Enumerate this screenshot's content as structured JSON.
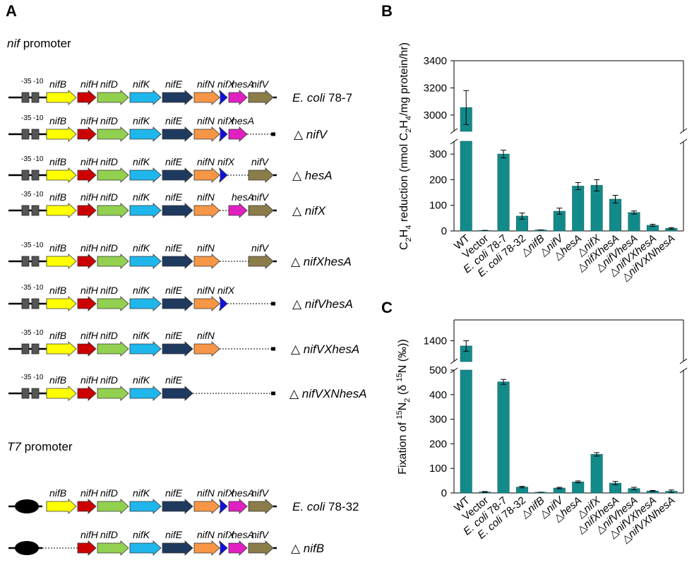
{
  "panel_a": {
    "letter": "A",
    "nif_promoter_label": {
      "italic": "nif",
      "rest": " promoter"
    },
    "t7_promoter_label": {
      "italic": "T7",
      "rest": " promoter"
    },
    "promoter_boxes": [
      "-35",
      "-10"
    ],
    "colors": {
      "nifB": "#ffff00",
      "nifH": "#cc0000",
      "nifD": "#92d050",
      "nifK": "#1fb6ec",
      "nifE": "#1f3a5f",
      "nifN": "#f79646",
      "nifX": "#1010e0",
      "hesA": "#e020c0",
      "nifV": "#8b7d4a",
      "box": "#555555",
      "t7": "#000000"
    },
    "constructs": [
      {
        "label_parts": [
          {
            "t": "E. coli",
            "i": true
          },
          {
            "t": " 78-7",
            "i": false
          }
        ],
        "promoter": "nif",
        "genes": [
          "nifB",
          "nifH",
          "nifD",
          "nifK",
          "nifE",
          "nifN",
          "nifX",
          "hesA",
          "nifV"
        ],
        "deleted": []
      },
      {
        "label_parts": [
          {
            "t": "△ ",
            "i": false
          },
          {
            "t": "nifV",
            "i": true
          }
        ],
        "promoter": "nif",
        "genes": [
          "nifB",
          "nifH",
          "nifD",
          "nifK",
          "nifE",
          "nifN",
          "nifX",
          "hesA"
        ],
        "deleted": [
          "nifV"
        ]
      },
      {
        "label_parts": [
          {
            "t": "△ ",
            "i": false
          },
          {
            "t": "hesA",
            "i": true
          }
        ],
        "promoter": "nif",
        "genes": [
          "nifB",
          "nifH",
          "nifD",
          "nifK",
          "nifE",
          "nifN",
          "nifX",
          "nifV"
        ],
        "deleted": [
          "hesA"
        ]
      },
      {
        "label_parts": [
          {
            "t": "△ ",
            "i": false
          },
          {
            "t": "nifX",
            "i": true
          }
        ],
        "promoter": "nif",
        "genes": [
          "nifB",
          "nifH",
          "nifD",
          "nifK",
          "nifE",
          "nifN",
          "hesA",
          "nifV"
        ],
        "deleted": [
          "nifX"
        ]
      },
      {
        "label_parts": [
          {
            "t": "△ ",
            "i": false
          },
          {
            "t": "nifXhesA",
            "i": true
          }
        ],
        "promoter": "nif",
        "genes": [
          "nifB",
          "nifH",
          "nifD",
          "nifK",
          "nifE",
          "nifN",
          "nifV"
        ],
        "deleted": [
          "nifX",
          "hesA"
        ]
      },
      {
        "label_parts": [
          {
            "t": "△ ",
            "i": false
          },
          {
            "t": "nifVhesA",
            "i": true
          }
        ],
        "promoter": "nif",
        "genes": [
          "nifB",
          "nifH",
          "nifD",
          "nifK",
          "nifE",
          "nifN",
          "nifX"
        ],
        "deleted": [
          "hesA",
          "nifV"
        ]
      },
      {
        "label_parts": [
          {
            "t": "△ ",
            "i": false
          },
          {
            "t": "nifVXhesA",
            "i": true
          }
        ],
        "promoter": "nif",
        "genes": [
          "nifB",
          "nifH",
          "nifD",
          "nifK",
          "nifE",
          "nifN"
        ],
        "deleted": [
          "nifX",
          "hesA",
          "nifV"
        ]
      },
      {
        "label_parts": [
          {
            "t": "△ ",
            "i": false
          },
          {
            "t": "nifVXNhesA",
            "i": true
          }
        ],
        "promoter": "nif",
        "genes": [
          "nifB",
          "nifH",
          "nifD",
          "nifK",
          "nifE"
        ],
        "deleted": [
          "nifN",
          "nifX",
          "hesA",
          "nifV"
        ]
      },
      {
        "label_parts": [
          {
            "t": "E. coli",
            "i": true
          },
          {
            "t": " 78-32",
            "i": false
          }
        ],
        "promoter": "T7",
        "genes": [
          "nifB",
          "nifH",
          "nifD",
          "nifK",
          "nifE",
          "nifN",
          "nifX",
          "hesA",
          "nifV"
        ],
        "deleted": []
      },
      {
        "label_parts": [
          {
            "t": "△ ",
            "i": false
          },
          {
            "t": "nifB",
            "i": true
          }
        ],
        "promoter": "T7",
        "genes": [
          "nifH",
          "nifD",
          "nifK",
          "nifE",
          "nifN",
          "nifX",
          "hesA",
          "nifV"
        ],
        "deleted": [
          "nifB"
        ]
      }
    ]
  },
  "chart_data": [
    {
      "panel": "B",
      "type": "bar",
      "ylabel": "C2H4 reduction (nmol C2H4/mg protein/hr)",
      "ylabel_parts": [
        {
          "t": "C",
          "s": ""
        },
        {
          "t": "2",
          "s": "sub"
        },
        {
          "t": "H",
          "s": ""
        },
        {
          "t": "4",
          "s": "sub"
        },
        {
          "t": " reduction (nmol C",
          "s": ""
        },
        {
          "t": "2",
          "s": "sub"
        },
        {
          "t": "H",
          "s": ""
        },
        {
          "t": "4",
          "s": "sub"
        },
        {
          "t": "/mg protein/hr)",
          "s": ""
        }
      ],
      "broken_axis": true,
      "lower_ylim": [
        0,
        350
      ],
      "lower_ticks": [
        0,
        100,
        200,
        300
      ],
      "upper_ylim": [
        2880,
        3400
      ],
      "upper_ticks": [
        3000,
        3200,
        3400
      ],
      "bar_color": "#138a8a",
      "categories": [
        [
          {
            "t": "WT",
            "i": false
          }
        ],
        [
          {
            "t": "Vector",
            "i": false
          }
        ],
        [
          {
            "t": "E. coli",
            "i": true
          },
          {
            "t": " 78-7",
            "i": false
          }
        ],
        [
          {
            "t": "E. coli",
            "i": true
          },
          {
            "t": " 78-32",
            "i": false
          }
        ],
        [
          {
            "t": "△",
            "i": false
          },
          {
            "t": "nifB",
            "i": true
          }
        ],
        [
          {
            "t": "△",
            "i": false
          },
          {
            "t": "nifV",
            "i": true
          }
        ],
        [
          {
            "t": "△",
            "i": false
          },
          {
            "t": "hesA",
            "i": true
          }
        ],
        [
          {
            "t": "△",
            "i": false
          },
          {
            "t": "nifX",
            "i": true
          }
        ],
        [
          {
            "t": "△",
            "i": false
          },
          {
            "t": "nifXhesA",
            "i": true
          }
        ],
        [
          {
            "t": "△",
            "i": false
          },
          {
            "t": "nifVhesA",
            "i": true
          }
        ],
        [
          {
            "t": "△",
            "i": false
          },
          {
            "t": "nifVXhesA",
            "i": true
          }
        ],
        [
          {
            "t": "△",
            "i": false
          },
          {
            "t": "nifVXNhesA",
            "i": true
          }
        ]
      ],
      "values": [
        3055,
        2,
        300,
        58,
        4,
        77,
        175,
        178,
        124,
        72,
        22,
        10
      ],
      "errors": [
        125,
        0,
        15,
        12,
        0,
        12,
        14,
        22,
        15,
        6,
        4,
        3
      ]
    },
    {
      "panel": "C",
      "type": "bar",
      "ylabel": "Fixation of 15N2 (δ 15N (‰))",
      "ylabel_parts": [
        {
          "t": "Fixation of ",
          "s": ""
        },
        {
          "t": "15",
          "s": "sup"
        },
        {
          "t": "N",
          "s": ""
        },
        {
          "t": "2",
          "s": "sub"
        },
        {
          "t": " (δ ",
          "s": ""
        },
        {
          "t": "15",
          "s": "sup"
        },
        {
          "t": "N (‰))",
          "s": ""
        }
      ],
      "broken_axis": true,
      "lower_ylim": [
        0,
        500
      ],
      "lower_ticks": [
        0,
        100,
        200,
        300,
        400,
        500
      ],
      "upper_ylim": [
        1300,
        1500
      ],
      "upper_ticks": [
        1400
      ],
      "bar_color": "#138a8a",
      "categories": [
        [
          {
            "t": "WT",
            "i": false
          }
        ],
        [
          {
            "t": "Vector",
            "i": false
          }
        ],
        [
          {
            "t": "E. coli",
            "i": true
          },
          {
            "t": " 78-7",
            "i": false
          }
        ],
        [
          {
            "t": "E. coli",
            "i": true
          },
          {
            "t": " 78-32",
            "i": false
          }
        ],
        [
          {
            "t": "△",
            "i": false
          },
          {
            "t": "nifB",
            "i": true
          }
        ],
        [
          {
            "t": "△",
            "i": false
          },
          {
            "t": "nifV",
            "i": true
          }
        ],
        [
          {
            "t": "△",
            "i": false
          },
          {
            "t": "hesA",
            "i": true
          }
        ],
        [
          {
            "t": "△",
            "i": false
          },
          {
            "t": "nifX",
            "i": true
          }
        ],
        [
          {
            "t": "△",
            "i": false
          },
          {
            "t": "nifXhesA",
            "i": true
          }
        ],
        [
          {
            "t": "△",
            "i": false
          },
          {
            "t": "nifVhesA",
            "i": true
          }
        ],
        [
          {
            "t": "△",
            "i": false
          },
          {
            "t": "nifVXhesA",
            "i": true
          }
        ],
        [
          {
            "t": "△",
            "i": false
          },
          {
            "t": "nifVXNhesA",
            "i": true
          }
        ]
      ],
      "values": [
        1375,
        4,
        452,
        24,
        3,
        20,
        45,
        157,
        40,
        18,
        8,
        7
      ],
      "errors": [
        25,
        2,
        10,
        3,
        0,
        3,
        4,
        7,
        7,
        5,
        2,
        5
      ]
    }
  ]
}
